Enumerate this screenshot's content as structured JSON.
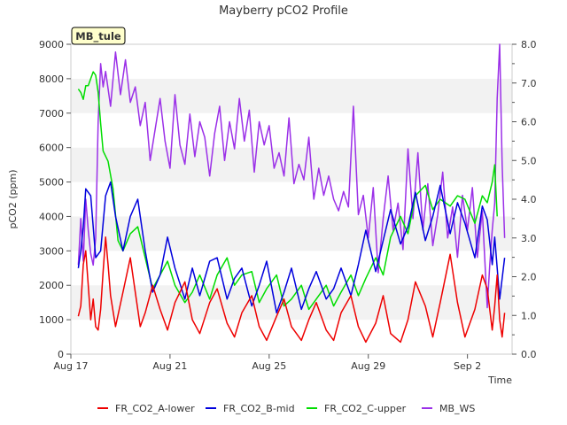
{
  "chart_data": {
    "type": "line",
    "title": "Mayberry pCO2 Profile",
    "site_label": "MB_tule",
    "xlabel": "Time",
    "ylabel": "pCO2 (ppm)",
    "ylim": [
      0,
      9000
    ],
    "y2lim": [
      0.0,
      8.0
    ],
    "xlim_days": [
      0,
      17.8
    ],
    "x_ticks": [
      {
        "day": 0,
        "label": "Aug 17"
      },
      {
        "day": 4,
        "label": "Aug 21"
      },
      {
        "day": 8,
        "label": "Aug 25"
      },
      {
        "day": 12,
        "label": "Aug 29"
      },
      {
        "day": 16,
        "label": "Sep 2"
      }
    ],
    "y_ticks": [
      "0",
      "1000",
      "2000",
      "3000",
      "4000",
      "5000",
      "6000",
      "7000",
      "8000",
      "9000"
    ],
    "y2_ticks": [
      "0.0",
      "1.0",
      "2.0",
      "3.0",
      "4.0",
      "5.0",
      "6.0",
      "7.0",
      "8.0"
    ],
    "grid": "horizontal bands",
    "legend_position": "bottom",
    "series": [
      {
        "name": "FR_CO2_A-lower",
        "color": "#ee0000",
        "axis": "left",
        "x": [
          0.3,
          0.4,
          0.5,
          0.6,
          0.8,
          0.9,
          1.0,
          1.1,
          1.2,
          1.3,
          1.4,
          1.5,
          1.6,
          1.8,
          2.1,
          2.4,
          2.6,
          2.8,
          3.0,
          3.3,
          3.6,
          3.9,
          4.2,
          4.6,
          4.9,
          5.2,
          5.6,
          5.9,
          6.3,
          6.6,
          6.9,
          7.3,
          7.6,
          7.9,
          8.3,
          8.6,
          8.9,
          9.3,
          9.6,
          9.9,
          10.3,
          10.6,
          10.9,
          11.3,
          11.6,
          11.9,
          12.3,
          12.6,
          12.9,
          13.3,
          13.6,
          13.9,
          14.3,
          14.6,
          14.9,
          15.3,
          15.6,
          15.9,
          16.3,
          16.6,
          16.8,
          17.0,
          17.1,
          17.2,
          17.3,
          17.4,
          17.5
        ],
        "values": [
          1100,
          1400,
          2600,
          3000,
          1000,
          1600,
          800,
          700,
          1300,
          2400,
          3400,
          2600,
          1700,
          800,
          1800,
          2800,
          1800,
          800,
          1200,
          2000,
          1300,
          700,
          1500,
          2100,
          1000,
          600,
          1500,
          1900,
          900,
          500,
          1200,
          1700,
          800,
          400,
          1100,
          1600,
          800,
          400,
          1000,
          1500,
          700,
          400,
          1200,
          1700,
          800,
          350,
          900,
          1700,
          600,
          350,
          1000,
          2100,
          1400,
          500,
          1500,
          2900,
          1500,
          500,
          1300,
          2300,
          1900,
          700,
          1400,
          2300,
          1000,
          500,
          1200
        ]
      },
      {
        "name": "FR_CO2_B-mid",
        "color": "#0000dd",
        "axis": "left",
        "x": [
          0.3,
          0.4,
          0.5,
          0.6,
          0.8,
          1.0,
          1.2,
          1.4,
          1.6,
          1.8,
          2.1,
          2.4,
          2.7,
          3.0,
          3.3,
          3.6,
          3.9,
          4.2,
          4.6,
          4.9,
          5.2,
          5.6,
          5.9,
          6.3,
          6.6,
          6.9,
          7.3,
          7.6,
          7.9,
          8.3,
          8.6,
          8.9,
          9.3,
          9.6,
          9.9,
          10.3,
          10.6,
          10.9,
          11.3,
          11.6,
          11.9,
          12.3,
          12.6,
          12.9,
          13.3,
          13.6,
          13.9,
          14.3,
          14.6,
          14.9,
          15.3,
          15.6,
          15.9,
          16.3,
          16.6,
          16.8,
          17.0,
          17.1,
          17.2,
          17.3,
          17.5
        ],
        "values": [
          2500,
          3000,
          3700,
          4800,
          4600,
          2800,
          3000,
          4600,
          5000,
          4000,
          3000,
          4000,
          4500,
          3000,
          1800,
          2300,
          3400,
          2500,
          1600,
          2500,
          1700,
          2700,
          2800,
          1600,
          2200,
          2500,
          1400,
          2000,
          2700,
          1200,
          1800,
          2500,
          1300,
          1900,
          2400,
          1600,
          1900,
          2500,
          1700,
          2600,
          3600,
          2400,
          3300,
          4200,
          3200,
          3700,
          4700,
          3300,
          4000,
          4900,
          3500,
          4400,
          3800,
          2800,
          4300,
          3900,
          2600,
          3400,
          2500,
          1600,
          2800
        ]
      },
      {
        "name": "FR_CO2_C-upper",
        "color": "#00dd00",
        "axis": "left",
        "x": [
          0.3,
          0.4,
          0.5,
          0.6,
          0.7,
          0.8,
          0.9,
          1.0,
          1.1,
          1.2,
          1.3,
          1.5,
          1.7,
          1.9,
          2.1,
          2.4,
          2.7,
          3.0,
          3.3,
          3.6,
          3.9,
          4.2,
          4.6,
          4.9,
          5.2,
          5.6,
          5.9,
          6.3,
          6.6,
          6.9,
          7.3,
          7.6,
          7.9,
          8.3,
          8.6,
          8.9,
          9.3,
          9.6,
          9.9,
          10.3,
          10.6,
          10.9,
          11.3,
          11.6,
          11.9,
          12.3,
          12.6,
          12.9,
          13.3,
          13.6,
          13.9,
          14.3,
          14.6,
          14.9,
          15.3,
          15.6,
          15.9,
          16.3,
          16.6,
          16.8,
          17.0,
          17.1,
          17.2
        ],
        "values": [
          7700,
          7600,
          7400,
          7800,
          7800,
          8000,
          8200,
          8100,
          7600,
          6700,
          5900,
          5600,
          4800,
          3300,
          3000,
          3500,
          3700,
          2800,
          1900,
          2300,
          2700,
          2000,
          1500,
          1800,
          2300,
          1600,
          2300,
          2800,
          2000,
          2300,
          2400,
          1500,
          1900,
          2300,
          1400,
          1600,
          2000,
          1300,
          1600,
          2000,
          1400,
          1800,
          2300,
          1700,
          2200,
          2800,
          2300,
          3400,
          4000,
          3500,
          4600,
          4900,
          4200,
          4500,
          4300,
          4600,
          4500,
          3800,
          4600,
          4400,
          5000,
          5500,
          4000
        ]
      },
      {
        "name": "MB_WS",
        "color": "#9b30e8",
        "axis": "right",
        "x": [
          0.3,
          0.4,
          0.5,
          0.6,
          0.7,
          0.8,
          0.9,
          1.0,
          1.1,
          1.2,
          1.3,
          1.4,
          1.6,
          1.8,
          2.0,
          2.2,
          2.4,
          2.6,
          2.8,
          3.0,
          3.2,
          3.4,
          3.6,
          3.8,
          4.0,
          4.2,
          4.4,
          4.6,
          4.8,
          5.0,
          5.2,
          5.4,
          5.6,
          5.8,
          6.0,
          6.2,
          6.4,
          6.6,
          6.8,
          7.0,
          7.2,
          7.4,
          7.6,
          7.8,
          8.0,
          8.2,
          8.4,
          8.6,
          8.8,
          9.0,
          9.2,
          9.4,
          9.6,
          9.8,
          10.0,
          10.2,
          10.4,
          10.6,
          10.8,
          11.0,
          11.2,
          11.4,
          11.6,
          11.8,
          12.0,
          12.2,
          12.4,
          12.6,
          12.8,
          13.0,
          13.2,
          13.4,
          13.6,
          13.8,
          14.0,
          14.2,
          14.4,
          14.6,
          14.8,
          15.0,
          15.2,
          15.4,
          15.6,
          15.8,
          16.0,
          16.2,
          16.4,
          16.6,
          16.8,
          16.9,
          17.0,
          17.1,
          17.2,
          17.3,
          17.4,
          17.5
        ],
        "values": [
          2.3,
          3.5,
          2.4,
          4.0,
          3.2,
          2.6,
          2.3,
          3.0,
          6.0,
          7.5,
          6.9,
          7.3,
          6.4,
          7.8,
          6.7,
          7.6,
          6.5,
          6.9,
          5.9,
          6.5,
          5.0,
          5.8,
          6.6,
          5.5,
          4.8,
          6.7,
          5.4,
          4.9,
          6.2,
          5.1,
          6.0,
          5.6,
          4.6,
          5.7,
          6.4,
          5.0,
          6.0,
          5.3,
          6.6,
          5.5,
          6.3,
          4.7,
          6.0,
          5.4,
          5.9,
          4.8,
          5.2,
          4.6,
          6.1,
          4.4,
          4.9,
          4.5,
          5.6,
          4.0,
          4.8,
          4.1,
          4.6,
          4.0,
          3.7,
          4.2,
          3.8,
          6.4,
          3.6,
          4.1,
          3.0,
          4.3,
          2.1,
          3.5,
          4.6,
          3.2,
          3.9,
          2.7,
          5.3,
          3.5,
          5.2,
          3.2,
          4.4,
          2.8,
          3.6,
          4.7,
          3.0,
          3.8,
          2.5,
          4.1,
          3.2,
          4.3,
          2.5,
          3.7,
          1.2,
          2.3,
          3.2,
          3.9,
          6.6,
          8.0,
          4.9,
          3.0
        ]
      }
    ]
  }
}
